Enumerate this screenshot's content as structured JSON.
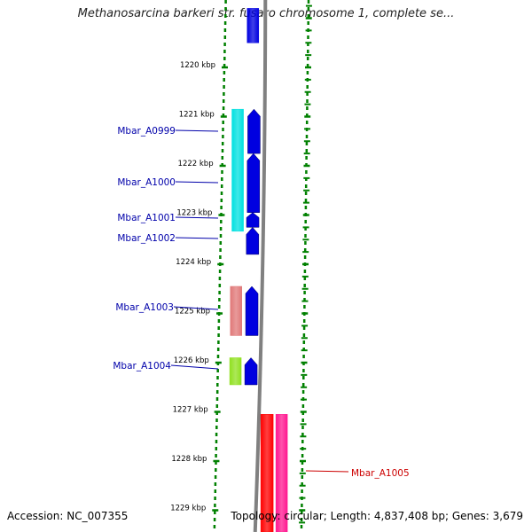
{
  "title": "Methanosarcina barkeri str. fusaro chromosome 1, complete se...",
  "accession": "Accession: NC_007355",
  "topology": "Topology: circular; Length: 4,837,408 bp; Genes: 3,679",
  "colors": {
    "background": "#ffffff",
    "backbone": "#808080",
    "ruler": "#008000",
    "forward_cds": "#0000e0",
    "gene_link_blue": "#0000aa",
    "gene_link_red": "#cc0000"
  },
  "scale": {
    "ticks": [
      {
        "label": "1220 kbp",
        "kbp": 1220
      },
      {
        "label": "1221 kbp",
        "kbp": 1221
      },
      {
        "label": "1222 kbp",
        "kbp": 1222
      },
      {
        "label": "1223 kbp",
        "kbp": 1223
      },
      {
        "label": "1224 kbp",
        "kbp": 1224
      },
      {
        "label": "1225 kbp",
        "kbp": 1225
      },
      {
        "label": "1226 kbp",
        "kbp": 1226
      },
      {
        "label": "1227 kbp",
        "kbp": 1227
      },
      {
        "label": "1228 kbp",
        "kbp": 1228
      },
      {
        "label": "1229 kbp",
        "kbp": 1229
      }
    ]
  },
  "genes": [
    {
      "name": "Mbar_A0999",
      "start_kbp": 1220.85,
      "end_kbp": 1221.3,
      "color": "#0000aa"
    },
    {
      "name": "Mbar_A1000",
      "start_kbp": 1221.3,
      "end_kbp": 1222.5,
      "color": "#0000aa"
    },
    {
      "name": "Mbar_A1001",
      "start_kbp": 1222.5,
      "end_kbp": 1222.8,
      "color": "#0000aa"
    },
    {
      "name": "Mbar_A1002",
      "start_kbp": 1222.8,
      "end_kbp": 1223.33,
      "color": "#0000aa"
    },
    {
      "name": "Mbar_A1003",
      "start_kbp": 1224.5,
      "end_kbp": 1225.45,
      "color": "#0000aa"
    },
    {
      "name": "Mbar_A1004",
      "start_kbp": 1225.9,
      "end_kbp": 1226.45,
      "color": "#0000aa"
    },
    {
      "name": "Mbar_A1005",
      "start_kbp": 1227.05,
      "end_kbp": 1229.5,
      "color": "#cc0000"
    }
  ],
  "features": [
    {
      "track": "cds",
      "color": "#0000e0",
      "start_kbp": 1218.8,
      "end_kbp": 1219.5
    },
    {
      "track": "cog",
      "color": "#00e0e0",
      "start_kbp": 1220.85,
      "end_kbp": 1223.33
    },
    {
      "track": "cog",
      "color": "#e07878",
      "start_kbp": 1224.45,
      "end_kbp": 1225.45
    },
    {
      "track": "cog",
      "color": "#90e020",
      "start_kbp": 1225.9,
      "end_kbp": 1226.45
    },
    {
      "track": "cog",
      "color": "#ff0000",
      "start_kbp": 1227.05,
      "end_kbp": 1229.5
    },
    {
      "track": "cog2",
      "color": "#ff1890",
      "start_kbp": 1227.05,
      "end_kbp": 1229.5
    }
  ],
  "cds_arrows": [
    {
      "start_kbp": 1220.85,
      "end_kbp": 1221.75
    },
    {
      "start_kbp": 1221.75,
      "end_kbp": 1222.95
    },
    {
      "start_kbp": 1222.95,
      "end_kbp": 1223.25
    },
    {
      "start_kbp": 1223.25,
      "end_kbp": 1223.8
    },
    {
      "start_kbp": 1224.45,
      "end_kbp": 1225.45
    },
    {
      "start_kbp": 1225.9,
      "end_kbp": 1226.45
    }
  ]
}
